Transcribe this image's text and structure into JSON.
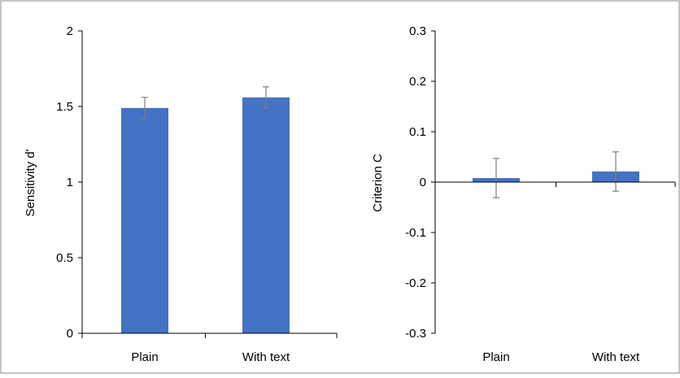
{
  "chart_data": [
    {
      "type": "bar",
      "title": "",
      "xlabel": "",
      "ylabel": "Sensitivity d'",
      "categories": [
        "Plain",
        "With text"
      ],
      "values": [
        1.49,
        1.56
      ],
      "error": [
        0.07,
        0.07
      ],
      "ylim": [
        0,
        2
      ],
      "yticks": [
        0,
        0.5,
        1,
        1.5,
        2
      ],
      "ytick_labels": [
        "0",
        "0.5",
        "1",
        "1.5",
        "2"
      ],
      "grid": false,
      "bar_color": "#4472C4",
      "error_color": "#7F7F7F"
    },
    {
      "type": "bar",
      "title": "",
      "xlabel": "",
      "ylabel": "Criterion C",
      "categories": [
        "Plain",
        "With text"
      ],
      "values": [
        0.008,
        0.021
      ],
      "error": [
        0.039,
        0.039
      ],
      "ylim": [
        -0.3,
        0.3
      ],
      "yticks": [
        -0.3,
        -0.2,
        -0.1,
        0,
        0.1,
        0.2,
        0.3
      ],
      "ytick_labels": [
        "-0.3",
        "-0.2",
        "-0.1",
        "0",
        "0.1",
        "0.2",
        "0.3"
      ],
      "grid": false,
      "bar_color": "#4472C4",
      "error_color": "#7F7F7F"
    }
  ]
}
